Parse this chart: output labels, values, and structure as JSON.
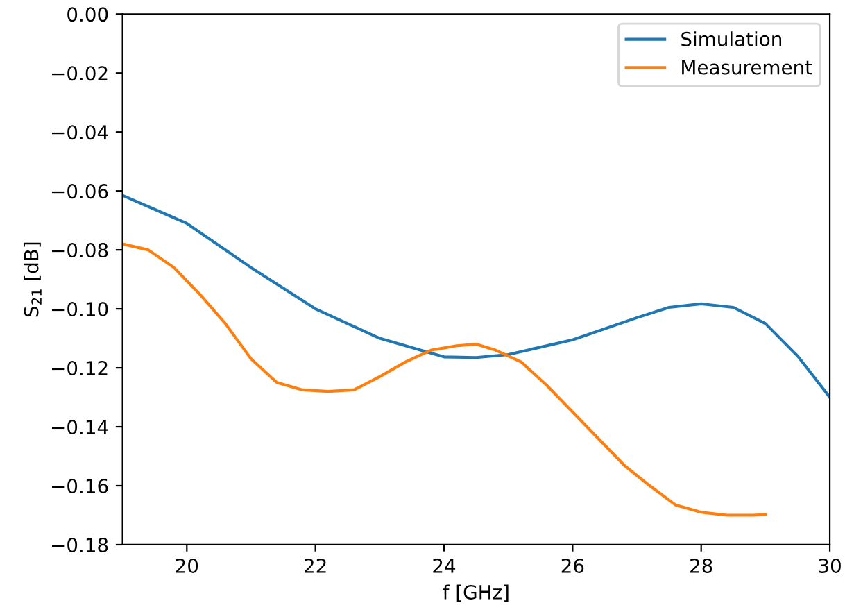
{
  "chart_data": {
    "type": "line",
    "xlabel": "f [GHz]",
    "ylabel": "S$_{21}$ [dB]",
    "xlim": [
      19,
      30
    ],
    "xticks": [
      20,
      22,
      24,
      26,
      28,
      30
    ],
    "ylim": [
      -0.18,
      0
    ],
    "yticks": [
      {
        "value": -0.18,
        "label": "−0.18"
      },
      {
        "value": -0.16,
        "label": "−0.16"
      },
      {
        "value": -0.14,
        "label": "−0.14"
      },
      {
        "value": -0.12,
        "label": "−0.12"
      },
      {
        "value": -0.1,
        "label": "−0.10"
      },
      {
        "value": -0.08,
        "label": "−0.08"
      },
      {
        "value": -0.06,
        "label": "−0.06"
      },
      {
        "value": -0.04,
        "label": "−0.04"
      },
      {
        "value": -0.02,
        "label": "−0.02"
      },
      {
        "value": 0,
        "label": "0.00"
      }
    ],
    "legend": "top right",
    "grid": false,
    "series": [
      {
        "name": "Simulation",
        "color": "#1f77b4",
        "x": [
          19,
          20,
          21,
          22,
          23,
          24,
          24.5,
          25,
          26,
          27,
          27.5,
          28,
          28.5,
          29,
          29.5,
          30
        ],
        "values": [
          -0.0615,
          -0.071,
          -0.086,
          -0.1,
          -0.11,
          -0.1163,
          -0.1165,
          -0.1155,
          -0.1105,
          -0.103,
          -0.0995,
          -0.0983,
          -0.0995,
          -0.105,
          -0.116,
          -0.13
        ]
      },
      {
        "name": "Measurement",
        "color": "#ff7f0e",
        "x": [
          19,
          19.4,
          19.8,
          20.2,
          20.6,
          21,
          21.4,
          21.8,
          22.2,
          22.6,
          23,
          23.4,
          23.8,
          24.2,
          24.5,
          24.8,
          25.2,
          25.6,
          26,
          26.4,
          26.8,
          27.2,
          27.6,
          28,
          28.4,
          28.8,
          29
        ],
        "values": [
          -0.078,
          -0.08,
          -0.086,
          -0.095,
          -0.105,
          -0.117,
          -0.125,
          -0.1275,
          -0.128,
          -0.1275,
          -0.123,
          -0.118,
          -0.114,
          -0.1125,
          -0.112,
          -0.114,
          -0.118,
          -0.126,
          -0.135,
          -0.144,
          -0.153,
          -0.16,
          -0.1665,
          -0.169,
          -0.17,
          -0.17,
          -0.1698
        ]
      }
    ]
  }
}
